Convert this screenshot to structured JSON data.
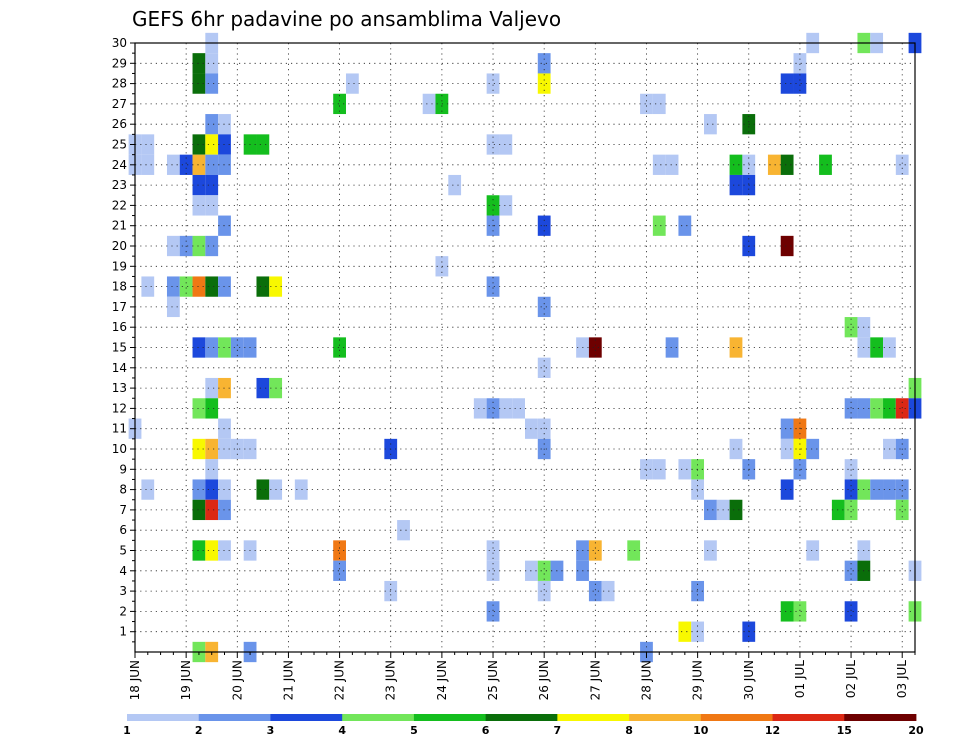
{
  "chart_data": {
    "type": "heatmap",
    "title": "GEFS 6hr padavine po ansamblima Valjevo",
    "x_tick_labels": [
      "18 JUN",
      "19 JUN",
      "20 JUN",
      "21 JUN",
      "22 JUN",
      "23 JUN",
      "24 JUN",
      "25 JUN",
      "26 JUN",
      "27 JUN",
      "28 JUN",
      "29 JUN",
      "30 JUN",
      "01 JUL",
      "02 JUL",
      "03 JUL"
    ],
    "y_tick_labels": [
      "1",
      "2",
      "3",
      "4",
      "5",
      "6",
      "7",
      "8",
      "9",
      "10",
      "11",
      "12",
      "13",
      "14",
      "15",
      "16",
      "17",
      "18",
      "19",
      "20",
      "21",
      "22",
      "23",
      "24",
      "25",
      "26",
      "27",
      "28",
      "29",
      "30"
    ],
    "x_steps_per_day": 4,
    "x_range_steps": [
      0,
      61
    ],
    "y_range": [
      0,
      30
    ],
    "grid": true,
    "colorbar": {
      "labels": [
        "1",
        "2",
        "3",
        "4",
        "5",
        "6",
        "7",
        "8",
        "10",
        "12",
        "15",
        "20"
      ],
      "colors": [
        "#b4c8f4",
        "#6a94ea",
        "#1c48dc",
        "#72e65a",
        "#14be1e",
        "#0a6e0a",
        "#f8f800",
        "#f8b432",
        "#f07814",
        "#dc2814",
        "#6e0000"
      ]
    },
    "cells": [
      [
        6,
        30,
        1
      ],
      [
        53,
        30,
        1
      ],
      [
        57,
        30,
        4
      ],
      [
        58,
        30,
        1
      ],
      [
        61,
        30,
        3
      ],
      [
        5,
        29,
        6
      ],
      [
        6,
        29,
        1
      ],
      [
        32,
        29,
        2
      ],
      [
        52,
        29,
        1
      ],
      [
        5,
        28,
        6
      ],
      [
        6,
        28,
        2
      ],
      [
        17,
        28,
        1
      ],
      [
        28,
        28,
        1
      ],
      [
        32,
        28,
        7
      ],
      [
        51,
        28,
        3
      ],
      [
        52,
        28,
        3
      ],
      [
        16,
        27,
        5
      ],
      [
        23,
        27,
        1
      ],
      [
        24,
        27,
        5
      ],
      [
        40,
        27,
        1
      ],
      [
        41,
        27,
        1
      ],
      [
        6,
        26,
        2
      ],
      [
        7,
        26,
        1
      ],
      [
        45,
        26,
        1
      ],
      [
        48,
        26,
        6
      ],
      [
        0,
        25,
        1
      ],
      [
        1,
        25,
        1
      ],
      [
        5,
        25,
        6
      ],
      [
        6,
        25,
        7
      ],
      [
        7,
        25,
        3
      ],
      [
        9,
        25,
        5
      ],
      [
        10,
        25,
        5
      ],
      [
        28,
        25,
        1
      ],
      [
        29,
        25,
        1
      ],
      [
        0,
        24,
        1
      ],
      [
        1,
        24,
        1
      ],
      [
        3,
        24,
        1
      ],
      [
        4,
        24,
        3
      ],
      [
        5,
        24,
        8
      ],
      [
        6,
        24,
        2
      ],
      [
        7,
        24,
        2
      ],
      [
        41,
        24,
        1
      ],
      [
        42,
        24,
        1
      ],
      [
        47,
        24,
        5
      ],
      [
        48,
        24,
        1
      ],
      [
        50,
        24,
        8
      ],
      [
        51,
        24,
        6
      ],
      [
        54,
        24,
        5
      ],
      [
        60,
        24,
        1
      ],
      [
        5,
        23,
        3
      ],
      [
        6,
        23,
        3
      ],
      [
        25,
        23,
        1
      ],
      [
        47,
        23,
        3
      ],
      [
        48,
        23,
        3
      ],
      [
        5,
        22,
        1
      ],
      [
        6,
        22,
        1
      ],
      [
        28,
        22,
        5
      ],
      [
        29,
        22,
        1
      ],
      [
        7,
        21,
        2
      ],
      [
        28,
        21,
        2
      ],
      [
        32,
        21,
        3
      ],
      [
        41,
        21,
        4
      ],
      [
        43,
        21,
        2
      ],
      [
        3,
        20,
        1
      ],
      [
        4,
        20,
        2
      ],
      [
        5,
        20,
        4
      ],
      [
        6,
        20,
        2
      ],
      [
        48,
        20,
        3
      ],
      [
        51,
        20,
        11
      ],
      [
        24,
        19,
        1
      ],
      [
        1,
        18,
        1
      ],
      [
        3,
        18,
        2
      ],
      [
        4,
        18,
        4
      ],
      [
        5,
        18,
        9
      ],
      [
        6,
        18,
        6
      ],
      [
        7,
        18,
        2
      ],
      [
        10,
        18,
        6
      ],
      [
        11,
        18,
        7
      ],
      [
        28,
        18,
        2
      ],
      [
        3,
        17,
        1
      ],
      [
        32,
        17,
        2
      ],
      [
        56,
        16,
        4
      ],
      [
        57,
        16,
        1
      ],
      [
        5,
        15,
        3
      ],
      [
        6,
        15,
        2
      ],
      [
        7,
        15,
        4
      ],
      [
        8,
        15,
        2
      ],
      [
        9,
        15,
        2
      ],
      [
        16,
        15,
        5
      ],
      [
        35,
        15,
        1
      ],
      [
        36,
        15,
        11
      ],
      [
        42,
        15,
        2
      ],
      [
        47,
        15,
        8
      ],
      [
        57,
        15,
        1
      ],
      [
        58,
        15,
        5
      ],
      [
        59,
        15,
        1
      ],
      [
        32,
        14,
        1
      ],
      [
        6,
        13,
        1
      ],
      [
        7,
        13,
        8
      ],
      [
        10,
        13,
        3
      ],
      [
        11,
        13,
        4
      ],
      [
        61,
        13,
        4
      ],
      [
        27,
        12,
        1
      ],
      [
        28,
        12,
        2
      ],
      [
        29,
        12,
        1
      ],
      [
        30,
        12,
        1
      ],
      [
        5,
        12,
        4
      ],
      [
        6,
        12,
        5
      ],
      [
        56,
        12,
        2
      ],
      [
        57,
        12,
        2
      ],
      [
        58,
        12,
        4
      ],
      [
        59,
        12,
        5
      ],
      [
        60,
        12,
        10
      ],
      [
        61,
        12,
        3
      ],
      [
        0,
        11,
        1
      ],
      [
        7,
        11,
        1
      ],
      [
        31,
        11,
        1
      ],
      [
        32,
        11,
        1
      ],
      [
        51,
        11,
        2
      ],
      [
        52,
        11,
        9
      ],
      [
        5,
        10,
        7
      ],
      [
        6,
        10,
        8
      ],
      [
        7,
        10,
        1
      ],
      [
        8,
        10,
        1
      ],
      [
        9,
        10,
        1
      ],
      [
        20,
        10,
        3
      ],
      [
        32,
        10,
        2
      ],
      [
        47,
        10,
        1
      ],
      [
        51,
        10,
        1
      ],
      [
        52,
        10,
        7
      ],
      [
        53,
        10,
        2
      ],
      [
        59,
        10,
        1
      ],
      [
        60,
        10,
        2
      ],
      [
        6,
        9,
        1
      ],
      [
        40,
        9,
        1
      ],
      [
        41,
        9,
        1
      ],
      [
        43,
        9,
        1
      ],
      [
        44,
        9,
        4
      ],
      [
        48,
        9,
        2
      ],
      [
        52,
        9,
        2
      ],
      [
        56,
        9,
        1
      ],
      [
        1,
        8,
        1
      ],
      [
        5,
        8,
        2
      ],
      [
        6,
        8,
        3
      ],
      [
        7,
        8,
        1
      ],
      [
        10,
        8,
        6
      ],
      [
        11,
        8,
        1
      ],
      [
        13,
        8,
        1
      ],
      [
        44,
        8,
        1
      ],
      [
        51,
        8,
        3
      ],
      [
        56,
        8,
        3
      ],
      [
        57,
        8,
        4
      ],
      [
        58,
        8,
        2
      ],
      [
        59,
        8,
        2
      ],
      [
        60,
        8,
        2
      ],
      [
        5,
        7,
        6
      ],
      [
        6,
        7,
        10
      ],
      [
        7,
        7,
        2
      ],
      [
        45,
        7,
        2
      ],
      [
        46,
        7,
        1
      ],
      [
        47,
        7,
        6
      ],
      [
        55,
        7,
        5
      ],
      [
        56,
        7,
        4
      ],
      [
        60,
        7,
        4
      ],
      [
        21,
        6,
        1
      ],
      [
        5,
        5,
        5
      ],
      [
        6,
        5,
        7
      ],
      [
        7,
        5,
        1
      ],
      [
        9,
        5,
        1
      ],
      [
        16,
        5,
        9
      ],
      [
        28,
        5,
        1
      ],
      [
        35,
        5,
        2
      ],
      [
        36,
        5,
        8
      ],
      [
        39,
        5,
        4
      ],
      [
        45,
        5,
        1
      ],
      [
        53,
        5,
        1
      ],
      [
        57,
        5,
        1
      ],
      [
        16,
        4,
        2
      ],
      [
        28,
        4,
        1
      ],
      [
        31,
        4,
        1
      ],
      [
        32,
        4,
        4
      ],
      [
        33,
        4,
        2
      ],
      [
        35,
        4,
        2
      ],
      [
        56,
        4,
        2
      ],
      [
        57,
        4,
        6
      ],
      [
        61,
        4,
        1
      ],
      [
        20,
        3,
        1
      ],
      [
        32,
        3,
        1
      ],
      [
        36,
        3,
        2
      ],
      [
        37,
        3,
        1
      ],
      [
        44,
        3,
        2
      ],
      [
        28,
        2,
        2
      ],
      [
        51,
        2,
        5
      ],
      [
        52,
        2,
        4
      ],
      [
        56,
        2,
        3
      ],
      [
        61,
        2,
        4
      ],
      [
        43,
        1,
        7
      ],
      [
        44,
        1,
        1
      ],
      [
        48,
        1,
        3
      ],
      [
        5,
        0,
        4
      ],
      [
        6,
        0,
        8
      ],
      [
        9,
        0,
        2
      ],
      [
        40,
        0,
        2
      ]
    ]
  }
}
